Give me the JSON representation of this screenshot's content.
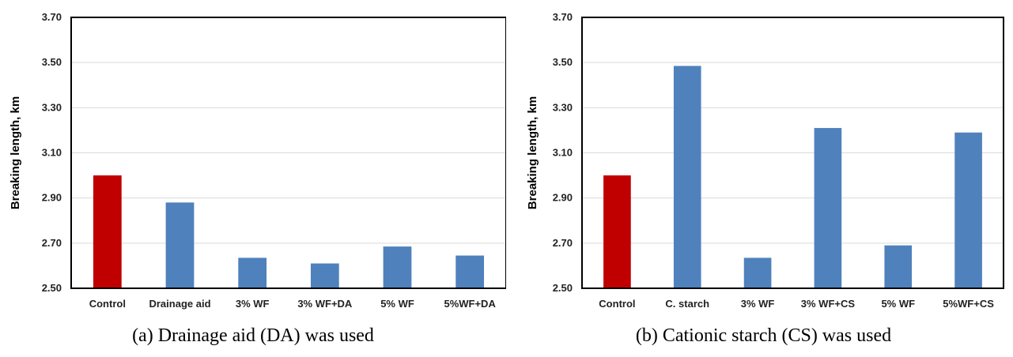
{
  "chart_data": [
    {
      "type": "bar",
      "ylabel": "Breaking length, km",
      "ylim": [
        2.5,
        3.7
      ],
      "yticks": [
        "2.50",
        "2.70",
        "2.90",
        "3.10",
        "3.30",
        "3.50",
        "3.70"
      ],
      "grid": true,
      "categories": [
        "Control",
        "Drainage aid",
        "3% WF",
        "3% WF+DA",
        "5% WF",
        "5%WF+DA"
      ],
      "values": [
        3.0,
        2.88,
        2.635,
        2.61,
        2.685,
        2.645
      ],
      "colors": [
        "#c00000",
        "#4f81bd",
        "#4f81bd",
        "#4f81bd",
        "#4f81bd",
        "#4f81bd"
      ],
      "caption": "(a) Drainage aid (DA) was used"
    },
    {
      "type": "bar",
      "ylabel": "Breaking length, km",
      "ylim": [
        2.5,
        3.7
      ],
      "yticks": [
        "2.50",
        "2.70",
        "2.90",
        "3.10",
        "3.30",
        "3.50",
        "3.70"
      ],
      "grid": true,
      "categories": [
        "Control",
        "C. starch",
        "3% WF",
        "3% WF+CS",
        "5% WF",
        "5%WF+CS"
      ],
      "values": [
        3.0,
        3.485,
        2.635,
        3.21,
        2.69,
        3.19
      ],
      "colors": [
        "#c00000",
        "#4f81bd",
        "#4f81bd",
        "#4f81bd",
        "#4f81bd",
        "#4f81bd"
      ],
      "caption": "(b) Cationic starch (CS) was used"
    }
  ]
}
